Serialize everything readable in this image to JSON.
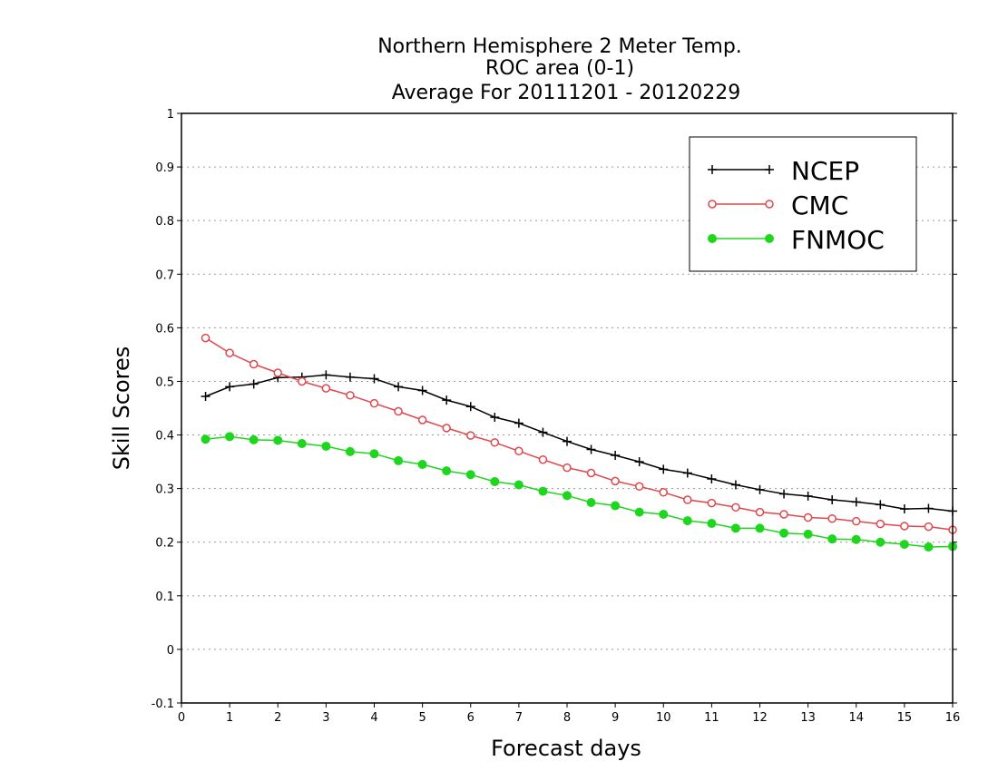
{
  "chart_data": {
    "type": "line",
    "title": [
      "Northern Hemisphere 2 Meter Temp.",
      "ROC area (0-1)",
      "Average For 20111201 - 20120229"
    ],
    "xlabel": "Forecast days",
    "ylabel": "Skill Scores",
    "xlim": [
      0,
      16
    ],
    "ylim": [
      -0.1,
      1
    ],
    "xticks": [
      "0",
      "1",
      "2",
      "3",
      "4",
      "5",
      "6",
      "7",
      "8",
      "9",
      "10",
      "11",
      "12",
      "13",
      "14",
      "15",
      "16"
    ],
    "yticks": [
      "-0.1",
      "0",
      "0.1",
      "0.2",
      "0.3",
      "0.4",
      "0.5",
      "0.6",
      "0.7",
      "0.8",
      "0.9",
      "1"
    ],
    "grid": "horizontal dotted",
    "legend_position": "top-right",
    "x": [
      0.5,
      1,
      1.5,
      2,
      2.5,
      3,
      3.5,
      4,
      4.5,
      5,
      5.5,
      6,
      6.5,
      7,
      7.5,
      8,
      8.5,
      9,
      9.5,
      10,
      10.5,
      11,
      11.5,
      12,
      12.5,
      13,
      13.5,
      14,
      14.5,
      15,
      15.5,
      16
    ],
    "series": [
      {
        "name": "NCEP",
        "color": "#000000",
        "marker": "plus",
        "values": [
          0.472,
          0.49,
          0.495,
          0.507,
          0.508,
          0.512,
          0.508,
          0.505,
          0.49,
          0.483,
          0.465,
          0.453,
          0.433,
          0.422,
          0.405,
          0.388,
          0.373,
          0.362,
          0.35,
          0.336,
          0.329,
          0.318,
          0.307,
          0.298,
          0.29,
          0.286,
          0.279,
          0.275,
          0.27,
          0.262,
          0.263,
          0.258
        ]
      },
      {
        "name": "CMC",
        "color": "#e0474c",
        "marker": "open-circle",
        "values": [
          0.581,
          0.553,
          0.532,
          0.516,
          0.5,
          0.487,
          0.474,
          0.459,
          0.444,
          0.428,
          0.413,
          0.399,
          0.386,
          0.37,
          0.354,
          0.339,
          0.329,
          0.314,
          0.304,
          0.293,
          0.279,
          0.273,
          0.265,
          0.256,
          0.252,
          0.246,
          0.244,
          0.239,
          0.234,
          0.23,
          0.229,
          0.223
        ]
      },
      {
        "name": "FNMOC",
        "color": "#1ed61e",
        "marker": "filled-circle",
        "values": [
          0.392,
          0.397,
          0.391,
          0.39,
          0.384,
          0.379,
          0.369,
          0.365,
          0.352,
          0.345,
          0.333,
          0.326,
          0.313,
          0.307,
          0.295,
          0.287,
          0.274,
          0.268,
          0.256,
          0.252,
          0.24,
          0.235,
          0.226,
          0.226,
          0.217,
          0.215,
          0.206,
          0.205,
          0.2,
          0.196,
          0.191,
          0.192
        ]
      }
    ]
  }
}
